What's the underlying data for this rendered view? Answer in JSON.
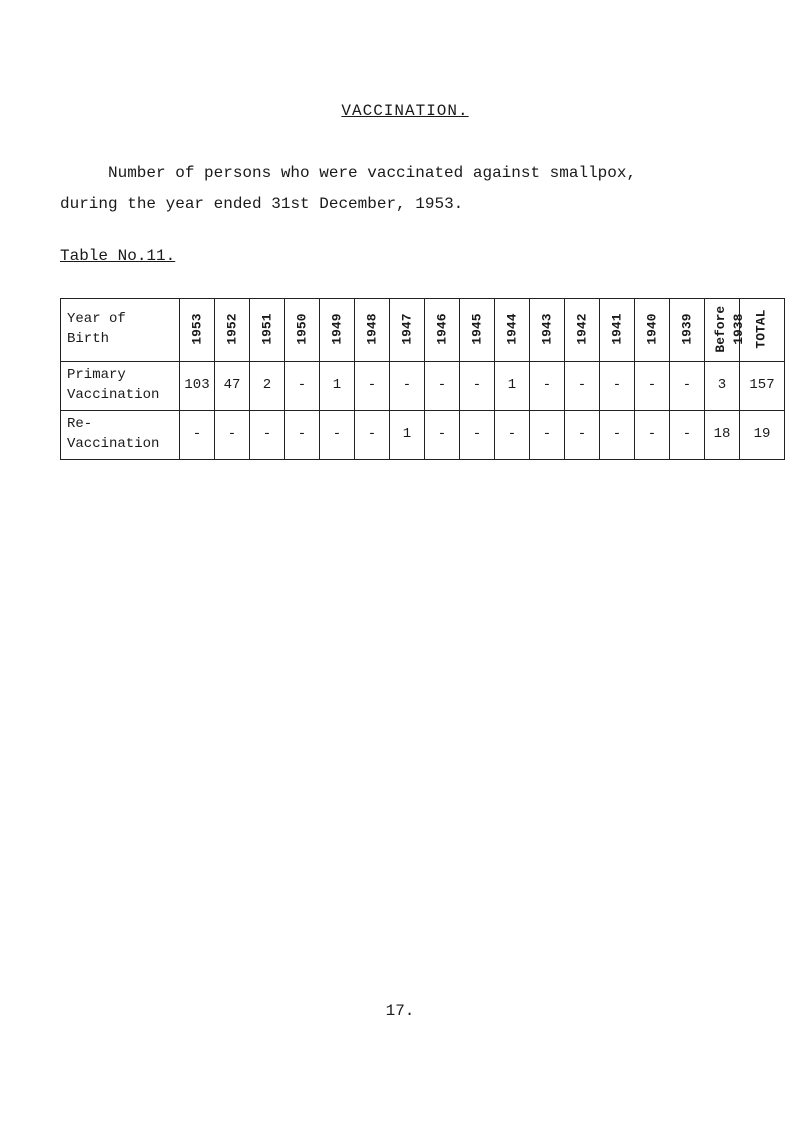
{
  "title": "VACCINATION.",
  "para1": "Number of persons who were vaccinated against smallpox,",
  "para2": "during the year ended 31st December, 1953.",
  "table_label": "Table No.11.",
  "columns": {
    "yob": "Year of\nBirth",
    "years": [
      "1953",
      "1952",
      "1951",
      "1950",
      "1949",
      "1948",
      "1947",
      "1946",
      "1945",
      "1944",
      "1943",
      "1942",
      "1941",
      "1940",
      "1939",
      "Before\n1938",
      "TOTAL"
    ]
  },
  "rows": [
    {
      "label": "Primary\nVaccination",
      "cells": [
        "103",
        "47",
        "2",
        "-",
        "1",
        "-",
        "-",
        "-",
        "-",
        "1",
        "-",
        "-",
        "-",
        "-",
        "-",
        "3",
        "157"
      ]
    },
    {
      "label": "Re-\nVaccination",
      "cells": [
        "-",
        "-",
        "-",
        "-",
        "-",
        "-",
        "1",
        "-",
        "-",
        "-",
        "-",
        "-",
        "-",
        "-",
        "-",
        "18",
        "19"
      ]
    }
  ],
  "page_number": "17."
}
